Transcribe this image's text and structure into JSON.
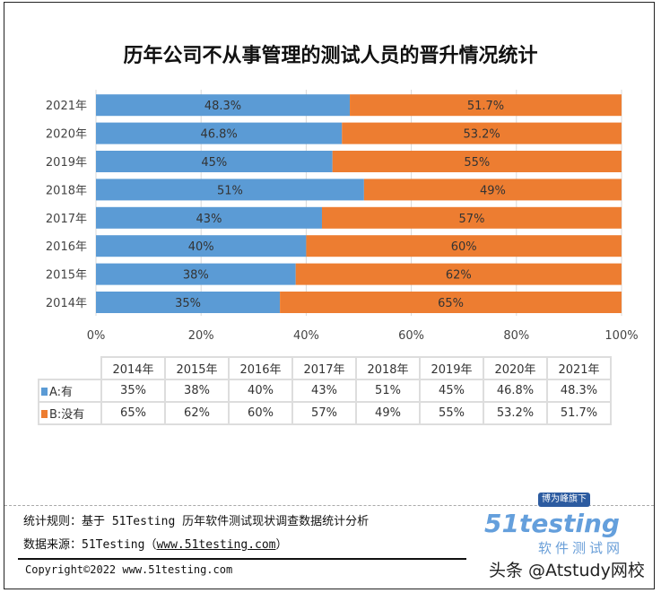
{
  "title": "历年公司不从事管理的测试人员的晋升情况统计",
  "chart_data": {
    "type": "bar",
    "stacked": "100%",
    "orientation": "horizontal",
    "title": "历年公司不从事管理的测试人员的晋升情况统计",
    "categories": [
      "2014年",
      "2015年",
      "2016年",
      "2017年",
      "2018年",
      "2019年",
      "2020年",
      "2021年"
    ],
    "series": [
      {
        "name": "A:有",
        "color": "#5b9bd5",
        "values": [
          35,
          38,
          40,
          43,
          51,
          45,
          46.8,
          48.3
        ],
        "labels": [
          "35%",
          "38%",
          "40%",
          "43%",
          "51%",
          "45%",
          "46.8%",
          "48.3%"
        ]
      },
      {
        "name": "B:没有",
        "color": "#ed7d31",
        "values": [
          65,
          62,
          60,
          57,
          49,
          55,
          53.2,
          51.7
        ],
        "labels": [
          "65%",
          "62%",
          "60%",
          "57%",
          "49%",
          "55%",
          "53.2%",
          "51.7%"
        ]
      }
    ],
    "xticks": [
      "0%",
      "20%",
      "40%",
      "60%",
      "80%",
      "100%"
    ],
    "xlim": [
      0,
      100
    ],
    "grid": true
  },
  "footer": {
    "rule": "统计规则：基于 51Testing 历年软件测试现状调查数据统计分析",
    "source_prefix": "数据来源：51Testing（",
    "source_link": "www.51testing.com",
    "source_suffix": "）",
    "copyright": "Copyright©2022 www.51testing.com"
  },
  "logo": {
    "badge": "博为峰旗下",
    "name": "51testing",
    "sub": "软件测试网"
  },
  "watermark": "头条 @Atstudy网校"
}
